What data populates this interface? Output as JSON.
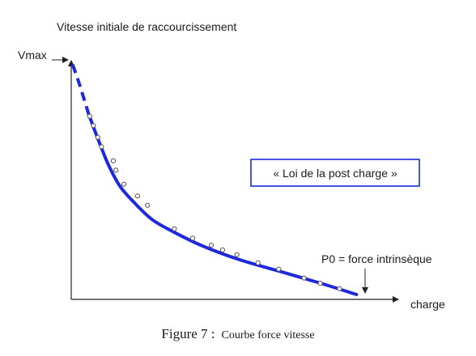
{
  "chart_data": {
    "type": "line",
    "ylabel": "Vitesse initiale de raccourcissement",
    "xlabel": "charge",
    "y_max_label": "Vmax",
    "x_end_label": "P0 = force intrinsèque",
    "annotation": "« Loi de la post charge »",
    "caption": {
      "main": "Figure 7 :",
      "rest": "Courbe force vitesse"
    },
    "x_range": [
      0,
      100
    ],
    "y_range": [
      0,
      100
    ],
    "curve": [
      {
        "x": 0.5,
        "y": 98
      },
      {
        "x": 3,
        "y": 89
      },
      {
        "x": 6,
        "y": 77
      },
      {
        "x": 10,
        "y": 64
      },
      {
        "x": 13,
        "y": 55
      },
      {
        "x": 17,
        "y": 46
      },
      {
        "x": 22,
        "y": 39
      },
      {
        "x": 28,
        "y": 32
      },
      {
        "x": 35,
        "y": 27
      },
      {
        "x": 45,
        "y": 21
      },
      {
        "x": 58,
        "y": 15
      },
      {
        "x": 72,
        "y": 10
      },
      {
        "x": 86,
        "y": 5
      },
      {
        "x": 99,
        "y": 0
      }
    ],
    "dashed_until_x": 6,
    "points": [
      {
        "x": 6.4,
        "y": 76
      },
      {
        "x": 7.7,
        "y": 72
      },
      {
        "x": 9.2,
        "y": 67
      },
      {
        "x": 10.5,
        "y": 63
      },
      {
        "x": 14.6,
        "y": 57
      },
      {
        "x": 15.5,
        "y": 53
      },
      {
        "x": 18.3,
        "y": 47
      },
      {
        "x": 23,
        "y": 42
      },
      {
        "x": 26.5,
        "y": 38
      },
      {
        "x": 35.8,
        "y": 28
      },
      {
        "x": 42.1,
        "y": 24
      },
      {
        "x": 48.6,
        "y": 21
      },
      {
        "x": 52.5,
        "y": 19
      },
      {
        "x": 57.5,
        "y": 17
      },
      {
        "x": 64.8,
        "y": 13.5
      },
      {
        "x": 72,
        "y": 10.8
      },
      {
        "x": 80.8,
        "y": 7
      },
      {
        "x": 86.4,
        "y": 4.8
      },
      {
        "x": 93.1,
        "y": 2.5
      }
    ],
    "colors": {
      "curve": "#1e28dc",
      "axis": "#222222",
      "marker_fill": "#ffffff",
      "marker_stroke": "#555555",
      "box_border": "#1e28dc"
    }
  }
}
